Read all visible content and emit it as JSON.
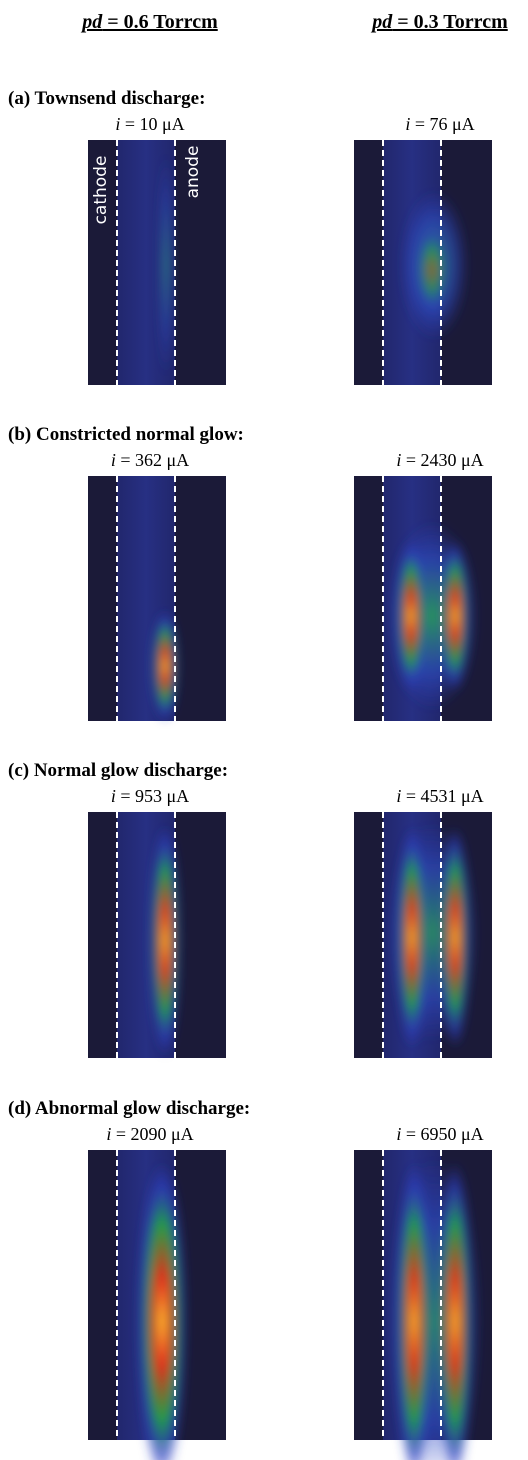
{
  "columns": [
    {
      "var": "pd",
      "rest": " = 0.6 Torrcm"
    },
    {
      "var": "pd",
      "rest": " = 0.3 Torrcm"
    }
  ],
  "panels": [
    {
      "title": "(a) Townsend discharge:",
      "currents": [
        {
          "var": "i",
          "rest": " = 10 μA"
        },
        {
          "var": "i",
          "rest": " = 76 μA"
        }
      ]
    },
    {
      "title": "(b) Constricted normal glow:",
      "currents": [
        {
          "var": "i",
          "rest": " = 362 μA"
        },
        {
          "var": "i",
          "rest": " = 2430 μA"
        }
      ]
    },
    {
      "title": "(c) Normal glow discharge:",
      "currents": [
        {
          "var": "i",
          "rest": " = 953 μA"
        },
        {
          "var": "i",
          "rest": " = 4531 μA"
        }
      ]
    },
    {
      "title": "(d) Abnormal glow discharge:",
      "currents": [
        {
          "var": "i",
          "rest": " = 2090 μA"
        },
        {
          "var": "i",
          "rest": " = 6950 μA"
        }
      ]
    }
  ],
  "electrode_labels": [
    "cathode",
    "anode"
  ]
}
